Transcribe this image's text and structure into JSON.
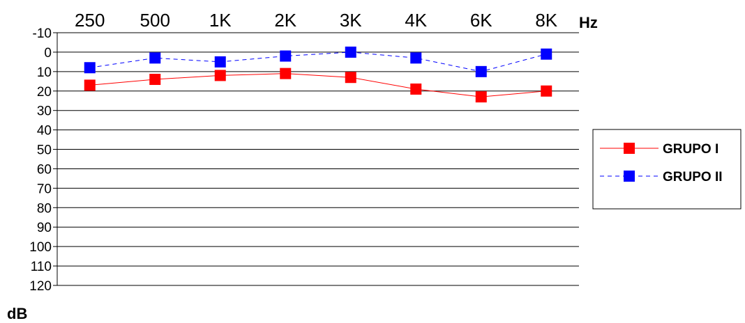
{
  "chart_data": {
    "type": "line",
    "categories": [
      "250",
      "500",
      "1K",
      "2K",
      "3K",
      "4K",
      "6K",
      "8K"
    ],
    "x_unit": "Hz",
    "y_unit": "dB",
    "ylim": [
      -10,
      120
    ],
    "y_reversed": true,
    "y_ticks": [
      -10,
      0,
      10,
      20,
      30,
      40,
      50,
      60,
      70,
      80,
      90,
      100,
      110,
      120
    ],
    "x_axis_position": "top",
    "grid": true,
    "legend_position": "right",
    "series": [
      {
        "name": "GRUPO I",
        "values": [
          17,
          14,
          12,
          11,
          13,
          19,
          23,
          20
        ],
        "color": "#ff0000",
        "line_style": "solid",
        "marker": "square"
      },
      {
        "name": "GRUPO II",
        "values": [
          8,
          3,
          5,
          2,
          0,
          3,
          10,
          1
        ],
        "color": "#0000ff",
        "line_style": "dashed",
        "marker": "square"
      }
    ]
  }
}
